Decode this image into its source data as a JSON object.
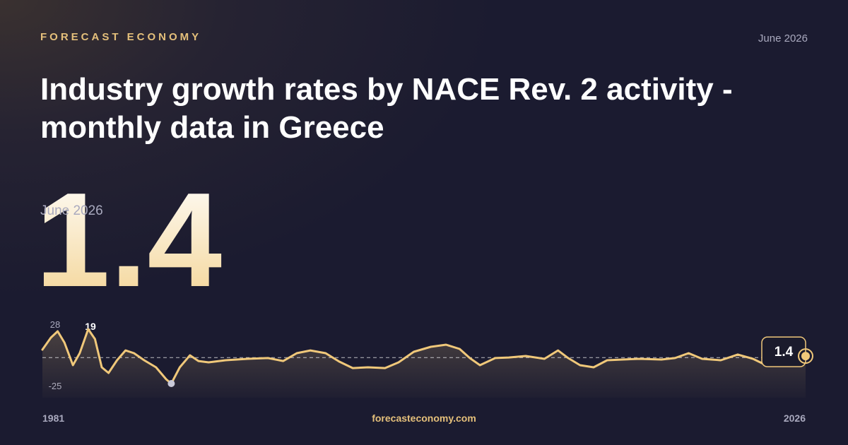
{
  "brand": "FORECAST ECONOMY",
  "date": "June 2026",
  "title": "Industry growth rates by NACE Rev. 2 activity - monthly data in Greece",
  "footer": "forecasteconomy.com",
  "chart_data": {
    "type": "line",
    "annotation": "19",
    "color": "#f0c87a",
    "xlim": [
      1981,
      2026
    ],
    "xticks": [
      1981,
      2026
    ],
    "ylim": [
      -25,
      28
    ],
    "yticks": [
      28,
      -25
    ],
    "x": [
      1981.0,
      1981.5,
      1981.9,
      1982.3,
      1982.8,
      1983.2,
      1983.7,
      1984.1,
      1984.5,
      1984.9,
      1985.4,
      1985.9,
      1986.4,
      1987.0,
      1987.7,
      1988.3,
      1988.6,
      1989.1,
      1989.7,
      1990.2,
      1990.8,
      1991.8,
      1993.1,
      1994.3,
      1995.2,
      1996.0,
      1996.8,
      1997.7,
      1998.5,
      1999.3,
      2000.2,
      2001.2,
      2002.0,
      2002.9,
      2003.9,
      2004.8,
      2005.6,
      2006.2,
      2006.8,
      2007.7,
      2008.5,
      2009.5,
      2010.6,
      2011.4,
      2012.0,
      2012.7,
      2013.5,
      2014.3,
      2015.2,
      2016.2,
      2017.5,
      2018.3,
      2019.1,
      2019.9,
      2021.0,
      2022.0,
      2022.9,
      2023.5,
      2024.3,
      2026.0
    ],
    "values": [
      7.6,
      19.2,
      25.3,
      14.4,
      -7.3,
      4.2,
      27.3,
      17.8,
      -9.4,
      -14.8,
      -2.6,
      6.9,
      4.2,
      -2.6,
      -9.4,
      -20.9,
      -25,
      -9.4,
      2.2,
      -3.3,
      -4.6,
      -2.6,
      -1.2,
      -0.5,
      -3.3,
      4.2,
      6.9,
      4.2,
      -3.9,
      -10.1,
      -9.4,
      -10.1,
      -4.6,
      5.6,
      10.3,
      12.4,
      8.3,
      -0.5,
      -7.3,
      -0.5,
      0.1,
      1.5,
      -1.2,
      6.9,
      -0.5,
      -7.3,
      -9.4,
      -2.6,
      -1.9,
      -1.2,
      -1.9,
      -0.5,
      4.2,
      -1.2,
      -2.6,
      2.9,
      -1.2,
      -6,
      -1.2,
      1.4
    ]
  }
}
